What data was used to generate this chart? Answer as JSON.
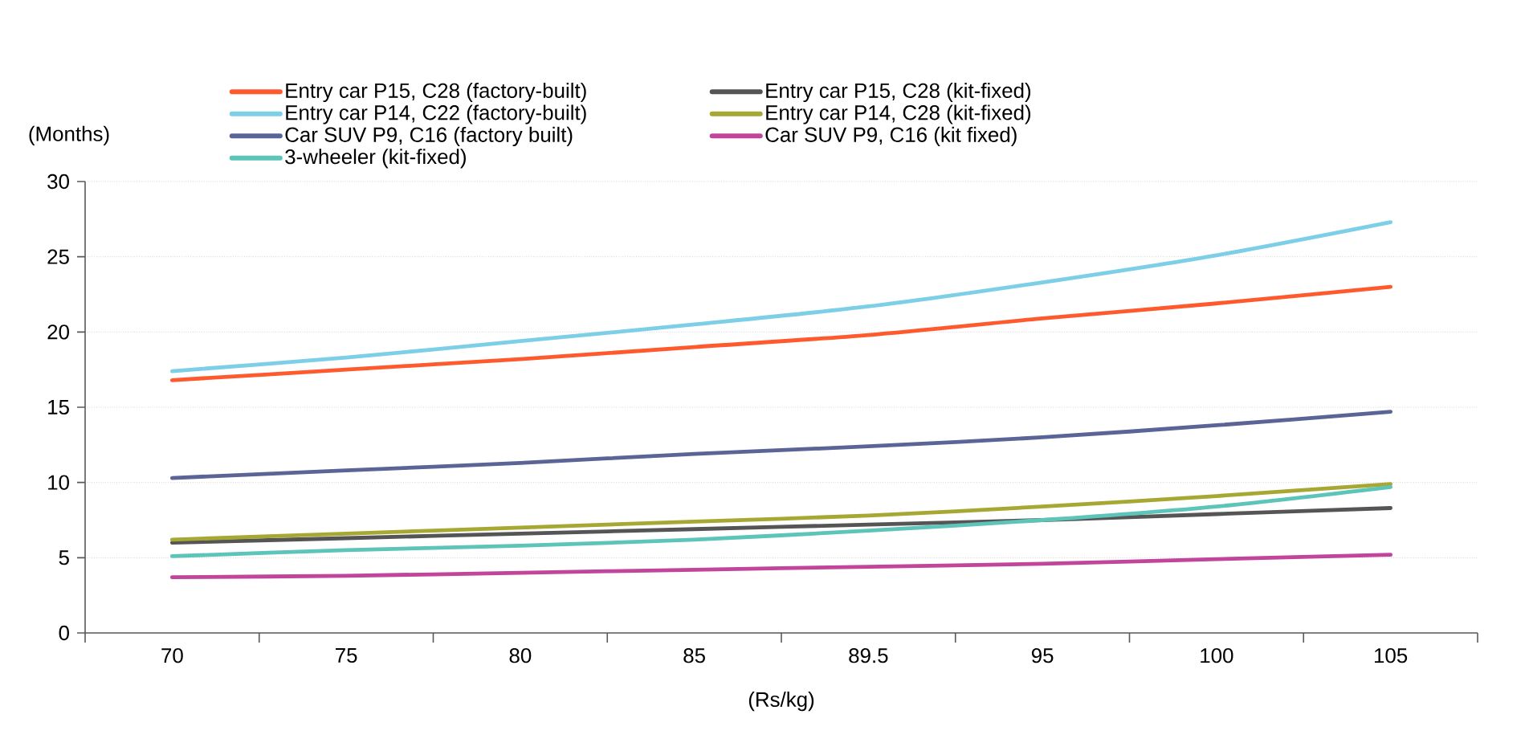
{
  "chart_data": {
    "type": "line",
    "xlabel": "(Rs/kg)",
    "ylabel": "(Months)",
    "categories": [
      "70",
      "75",
      "80",
      "85",
      "89.5",
      "95",
      "100",
      "105"
    ],
    "ylim": [
      0,
      30
    ],
    "yticks": [
      0,
      5,
      10,
      15,
      20,
      25,
      30
    ],
    "grid": "y",
    "legend": "top",
    "line_style": "solid",
    "marker": "none",
    "series": [
      {
        "name": "Entry car P15, C28 (factory-built)",
        "color": "#ff5a2d",
        "values": [
          16.8,
          17.5,
          18.2,
          19.0,
          19.8,
          20.9,
          21.9,
          23.0
        ]
      },
      {
        "name": "Entry car P15, C28 (kit-fixed)",
        "color": "#555555",
        "values": [
          6.0,
          6.3,
          6.6,
          6.9,
          7.2,
          7.5,
          7.9,
          8.3
        ]
      },
      {
        "name": "Entry car P14, C22 (factory-built)",
        "color": "#7ccfe6",
        "values": [
          17.4,
          18.3,
          19.4,
          20.5,
          21.7,
          23.3,
          25.1,
          27.3
        ]
      },
      {
        "name": "Entry car P14, C28 (kit-fixed)",
        "color": "#a6a833",
        "values": [
          6.2,
          6.6,
          7.0,
          7.4,
          7.8,
          8.4,
          9.1,
          9.9
        ]
      },
      {
        "name": "Car SUV P9, C16 (factory built)",
        "color": "#5a6496",
        "values": [
          10.3,
          10.8,
          11.3,
          11.9,
          12.4,
          13.0,
          13.8,
          14.7
        ]
      },
      {
        "name": "Car SUV P9, C16 (kit fixed)",
        "color": "#c0459b",
        "values": [
          3.7,
          3.8,
          4.0,
          4.2,
          4.4,
          4.6,
          4.9,
          5.2
        ]
      },
      {
        "name": "3-wheeler (kit-fixed)",
        "color": "#5cc4b8",
        "values": [
          5.1,
          5.5,
          5.8,
          6.2,
          6.8,
          7.5,
          8.4,
          9.7
        ]
      }
    ]
  }
}
